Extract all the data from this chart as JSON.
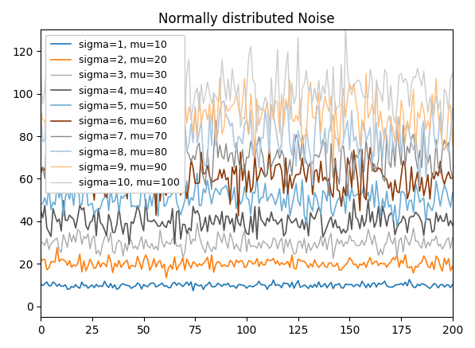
{
  "title": "Normally distributed Noise",
  "n_points": 201,
  "series": [
    {
      "sigma": 1,
      "mu": 10,
      "color": "#1f77b4",
      "label": "sigma=1, mu=10",
      "lw": 1.2
    },
    {
      "sigma": 2,
      "mu": 20,
      "color": "#ff7f0e",
      "label": "sigma=2, mu=20",
      "lw": 1.2
    },
    {
      "sigma": 3,
      "mu": 30,
      "color": "#aaaaaa",
      "label": "sigma=3, mu=30",
      "lw": 1.0
    },
    {
      "sigma": 4,
      "mu": 40,
      "color": "#555555",
      "label": "sigma=4, mu=40",
      "lw": 1.2
    },
    {
      "sigma": 5,
      "mu": 50,
      "color": "#6baed6",
      "label": "sigma=5, mu=50",
      "lw": 1.2
    },
    {
      "sigma": 6,
      "mu": 60,
      "color": "#8b3a0a",
      "label": "sigma=6, mu=60",
      "lw": 1.2
    },
    {
      "sigma": 7,
      "mu": 70,
      "color": "#888888",
      "label": "sigma=7, mu=70",
      "lw": 1.0
    },
    {
      "sigma": 8,
      "mu": 80,
      "color": "#aec8e0",
      "label": "sigma=8, mu=80",
      "lw": 1.2
    },
    {
      "sigma": 9,
      "mu": 90,
      "color": "#ffbc79",
      "label": "sigma=9, mu=90",
      "lw": 1.0
    },
    {
      "sigma": 10,
      "mu": 100,
      "color": "#cccccc",
      "label": "sigma=10, mu=100",
      "lw": 1.0
    }
  ],
  "xlim": [
    0,
    200
  ],
  "ylim": [
    -5,
    130
  ],
  "seed": 42,
  "legend_loc": "upper left",
  "legend_fontsize": 9
}
